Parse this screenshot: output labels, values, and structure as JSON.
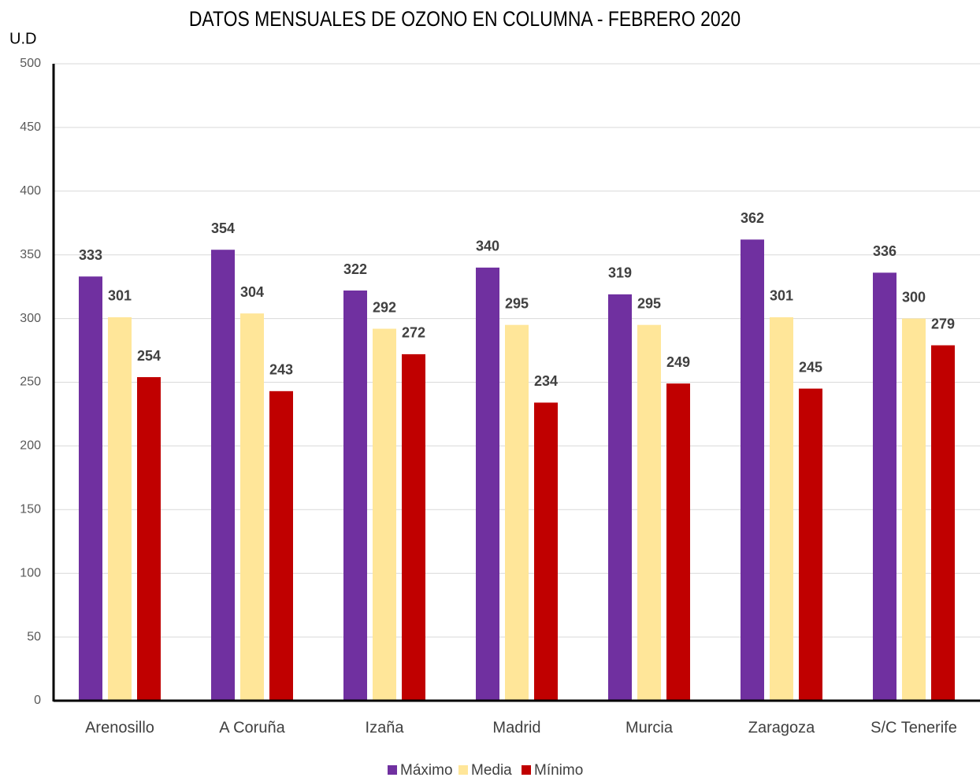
{
  "chart_data": {
    "type": "bar",
    "title": "DATOS MENSUALES DE OZONO EN COLUMNA - FEBRERO 2020",
    "y_label": "U.D",
    "categories": [
      "Arenosillo",
      "A Coruña",
      "Izaña",
      "Madrid",
      "Murcia",
      "Zaragoza",
      "S/C Tenerife"
    ],
    "series": [
      {
        "name": "Máximo",
        "color": "#7030a0",
        "values": [
          333,
          354,
          322,
          340,
          319,
          362,
          336
        ]
      },
      {
        "name": "Media",
        "color": "#ffe699",
        "values": [
          301,
          304,
          292,
          295,
          295,
          301,
          300
        ]
      },
      {
        "name": "Mínimo",
        "color": "#c00000",
        "values": [
          254,
          243,
          272,
          234,
          249,
          245,
          279
        ]
      }
    ],
    "ylim": [
      0,
      500
    ],
    "yticks": [
      0,
      50,
      100,
      150,
      200,
      250,
      300,
      350,
      400,
      450,
      500
    ],
    "grid": true,
    "legend": "bottom"
  }
}
